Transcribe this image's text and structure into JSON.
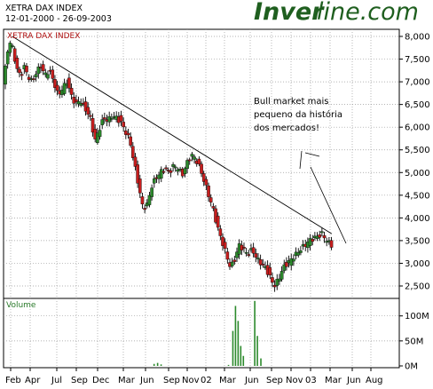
{
  "header": {
    "index_name": "XETRA DAX INDEX",
    "date_range": "12-01-2000 - 26-09-2003",
    "brand_bold": "Inver",
    "brand_light": "line.com",
    "brand_color": "#1f5f1f"
  },
  "chart_data": [
    {
      "type": "candlestick",
      "title": "XETRA DAX INDEX",
      "y_ticks": [
        "8,000",
        "7,500",
        "7,000",
        "6,500",
        "6,000",
        "5,500",
        "5,000",
        "4,500",
        "4,000",
        "3,500",
        "3,000",
        "2,500"
      ],
      "ylim": [
        2250,
        8150
      ],
      "grid": true,
      "up_color": "#2c8a2c",
      "down_color": "#c81e1e",
      "points": [
        {
          "m": 0.0,
          "v": 6900
        },
        {
          "m": 0.3,
          "v": 7350
        },
        {
          "m": 0.6,
          "v": 7750
        },
        {
          "m": 0.9,
          "v": 7950
        },
        {
          "m": 1.2,
          "v": 7600
        },
        {
          "m": 1.6,
          "v": 7300
        },
        {
          "m": 2.0,
          "v": 7100
        },
        {
          "m": 2.4,
          "v": 7350
        },
        {
          "m": 2.8,
          "v": 7150
        },
        {
          "m": 3.3,
          "v": 7000
        },
        {
          "m": 3.8,
          "v": 7200
        },
        {
          "m": 4.3,
          "v": 7350
        },
        {
          "m": 4.8,
          "v": 7150
        },
        {
          "m": 5.3,
          "v": 7250
        },
        {
          "m": 5.8,
          "v": 7000
        },
        {
          "m": 6.3,
          "v": 6700
        },
        {
          "m": 6.8,
          "v": 6850
        },
        {
          "m": 7.3,
          "v": 7000
        },
        {
          "m": 7.8,
          "v": 6700
        },
        {
          "m": 8.3,
          "v": 6500
        },
        {
          "m": 8.8,
          "v": 6600
        },
        {
          "m": 9.4,
          "v": 6400
        },
        {
          "m": 10.0,
          "v": 6200
        },
        {
          "m": 10.5,
          "v": 5700
        },
        {
          "m": 11.0,
          "v": 5950
        },
        {
          "m": 11.5,
          "v": 6200
        },
        {
          "m": 12.0,
          "v": 6150
        },
        {
          "m": 12.5,
          "v": 6250
        },
        {
          "m": 13.0,
          "v": 6200
        },
        {
          "m": 13.5,
          "v": 6100
        },
        {
          "m": 14.0,
          "v": 5900
        },
        {
          "m": 14.5,
          "v": 5700
        },
        {
          "m": 15.0,
          "v": 5200
        },
        {
          "m": 15.5,
          "v": 4700
        },
        {
          "m": 16.0,
          "v": 4200
        },
        {
          "m": 16.5,
          "v": 4300
        },
        {
          "m": 17.0,
          "v": 4700
        },
        {
          "m": 17.5,
          "v": 4900
        },
        {
          "m": 18.0,
          "v": 5000
        },
        {
          "m": 18.5,
          "v": 5100
        },
        {
          "m": 19.0,
          "v": 5000
        },
        {
          "m": 19.5,
          "v": 5150
        },
        {
          "m": 20.0,
          "v": 5100
        },
        {
          "m": 20.5,
          "v": 4950
        },
        {
          "m": 21.0,
          "v": 5200
        },
        {
          "m": 21.5,
          "v": 5400
        },
        {
          "m": 22.0,
          "v": 5300
        },
        {
          "m": 22.5,
          "v": 5100
        },
        {
          "m": 23.0,
          "v": 4800
        },
        {
          "m": 23.5,
          "v": 4500
        },
        {
          "m": 24.0,
          "v": 4200
        },
        {
          "m": 24.5,
          "v": 3800
        },
        {
          "m": 25.0,
          "v": 3500
        },
        {
          "m": 25.5,
          "v": 3200
        },
        {
          "m": 26.0,
          "v": 2900
        },
        {
          "m": 26.5,
          "v": 3100
        },
        {
          "m": 27.0,
          "v": 3400
        },
        {
          "m": 27.5,
          "v": 3300
        },
        {
          "m": 28.0,
          "v": 3200
        },
        {
          "m": 28.5,
          "v": 3300
        },
        {
          "m": 29.0,
          "v": 3100
        },
        {
          "m": 29.5,
          "v": 3000
        },
        {
          "m": 30.0,
          "v": 2900
        },
        {
          "m": 30.5,
          "v": 2700
        },
        {
          "m": 31.0,
          "v": 2500
        },
        {
          "m": 31.5,
          "v": 2650
        },
        {
          "m": 32.0,
          "v": 2900
        },
        {
          "m": 32.5,
          "v": 3000
        },
        {
          "m": 33.0,
          "v": 3100
        },
        {
          "m": 33.5,
          "v": 3200
        },
        {
          "m": 34.0,
          "v": 3300
        },
        {
          "m": 34.5,
          "v": 3400
        },
        {
          "m": 35.0,
          "v": 3500
        },
        {
          "m": 35.5,
          "v": 3550
        },
        {
          "m": 36.0,
          "v": 3600
        },
        {
          "m": 36.5,
          "v": 3650
        },
        {
          "m": 37.0,
          "v": 3500
        },
        {
          "m": 37.5,
          "v": 3400
        }
      ],
      "trendline": {
        "start": {
          "m": 0.8,
          "v": 8000
        },
        "end": {
          "m": 37.3,
          "v": 3650
        }
      }
    },
    {
      "type": "bar",
      "label": "Volume",
      "y_ticks": [
        "100M",
        "50M",
        "0M"
      ],
      "ylim": [
        0,
        135
      ],
      "bar_color": "#2c8a2c",
      "points": [
        {
          "m": 17.0,
          "v": 4
        },
        {
          "m": 17.4,
          "v": 6
        },
        {
          "m": 17.8,
          "v": 3
        },
        {
          "m": 25.5,
          "v": 2
        },
        {
          "m": 26.0,
          "v": 70
        },
        {
          "m": 26.3,
          "v": 120
        },
        {
          "m": 26.6,
          "v": 90
        },
        {
          "m": 26.9,
          "v": 40
        },
        {
          "m": 27.2,
          "v": 20
        },
        {
          "m": 28.5,
          "v": 130
        },
        {
          "m": 28.8,
          "v": 60
        },
        {
          "m": 29.2,
          "v": 15
        }
      ]
    }
  ],
  "x_ticks": [
    "Feb",
    "Apr",
    "Jul",
    "Sep",
    "Dec",
    "Mar",
    "Jun",
    "Sep",
    "Nov",
    "02",
    "Mar",
    "Jun",
    "Sep",
    "Nov",
    "03",
    "Mar",
    "Jun",
    "Aug"
  ],
  "annotation": {
    "line1": "Bull market mais",
    "line2": "pequeno da história",
    "line3": "dos mercados!"
  }
}
